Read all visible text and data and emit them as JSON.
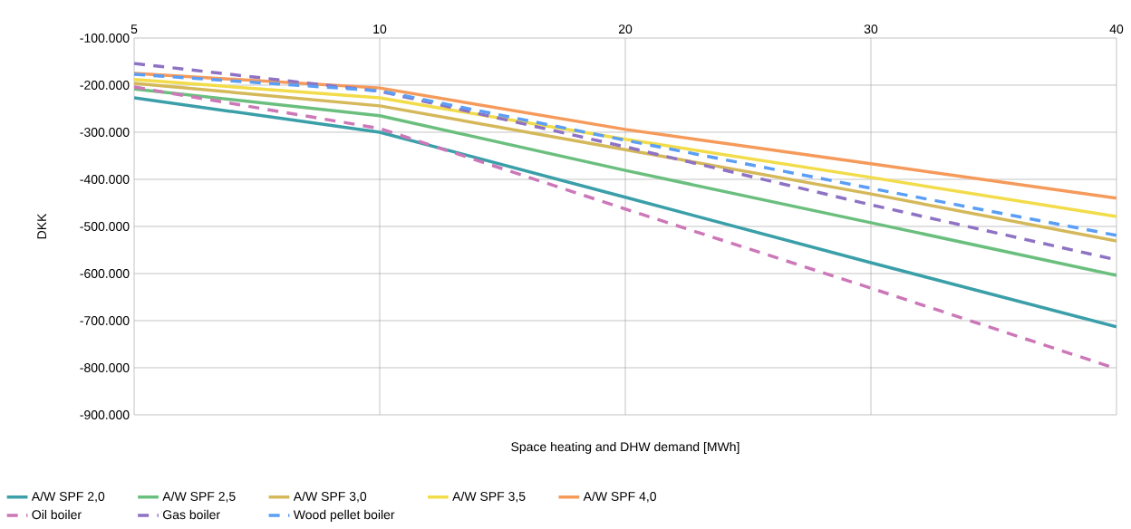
{
  "chart_data": {
    "type": "line",
    "xlabel": "Space heating and DHW demand [MWh]",
    "ylabel": "DKK",
    "categories": [
      "5",
      "10",
      "20",
      "30",
      "40"
    ],
    "ylim": [
      -900000,
      -100000
    ],
    "yticks": [
      {
        "value": -900000,
        "label": "-900.000"
      },
      {
        "value": -800000,
        "label": "-800.000"
      },
      {
        "value": -700000,
        "label": "-700.000"
      },
      {
        "value": -600000,
        "label": "-600.000"
      },
      {
        "value": -500000,
        "label": "-500.000"
      },
      {
        "value": -400000,
        "label": "-400.000"
      },
      {
        "value": -300000,
        "label": "-300.000"
      },
      {
        "value": -200000,
        "label": "-200.000"
      },
      {
        "value": -100000,
        "label": "-100.000"
      }
    ],
    "grid": true,
    "legend": "bottom",
    "marker": "none",
    "series": [
      {
        "name": "A/W SPF 2,0",
        "color": "#3a9fa8",
        "line_style": "solid",
        "values": [
          -227000,
          -300000,
          -438000,
          -577000,
          -713000
        ]
      },
      {
        "name": "A/W SPF 2,5",
        "color": "#6bbf7e",
        "line_style": "solid",
        "values": [
          -208000,
          -265000,
          -381000,
          -492000,
          -604000
        ]
      },
      {
        "name": "A/W SPF 3,0",
        "color": "#d4b85a",
        "line_style": "solid",
        "values": [
          -196000,
          -244000,
          -337000,
          -431000,
          -531000
        ]
      },
      {
        "name": "A/W SPF 3,5",
        "color": "#f2dc4a",
        "line_style": "solid",
        "values": [
          -188000,
          -227000,
          -315000,
          -396000,
          -479000
        ]
      },
      {
        "name": "A/W SPF 4,0",
        "color": "#f59a5b",
        "line_style": "solid",
        "values": [
          -175000,
          -206000,
          -294000,
          -367000,
          -440000
        ]
      },
      {
        "name": "Oil boiler",
        "color": "#cc77b8",
        "line_style": "dashed",
        "values": [
          -204000,
          -292000,
          -463000,
          -631000,
          -802000
        ]
      },
      {
        "name": "Gas boiler",
        "color": "#8e72c4",
        "line_style": "dashed",
        "values": [
          -154000,
          -213000,
          -331000,
          -454000,
          -571000
        ]
      },
      {
        "name": "Wood pellet boiler",
        "color": "#5b9ef5",
        "line_style": "dashed",
        "values": [
          -177000,
          -212000,
          -317000,
          -419000,
          -519000
        ]
      }
    ]
  }
}
